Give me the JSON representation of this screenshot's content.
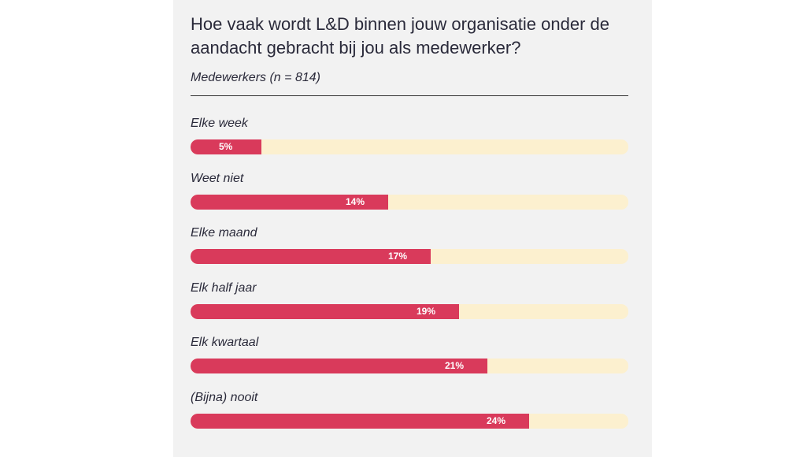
{
  "chart_data": {
    "type": "bar",
    "title": "Hoe vaak wordt L&D binnen jouw organisatie onder de aandacht gebracht bij jou als medewerker?",
    "subtitle": "Medewerkers (n = 814)",
    "categories": [
      "Elke week",
      "Weet niet",
      "Elke maand",
      "Elk half jaar",
      "Elk kwartaal",
      "(Bijna) nooit"
    ],
    "values": [
      5,
      14,
      17,
      19,
      21,
      24
    ],
    "value_labels": [
      "5%",
      "14%",
      "17%",
      "19%",
      "21%",
      "24%"
    ],
    "unit": "%",
    "colors": {
      "bar": "#d93a5b",
      "track": "#fcf0cf",
      "background": "#f2f2f2"
    }
  }
}
